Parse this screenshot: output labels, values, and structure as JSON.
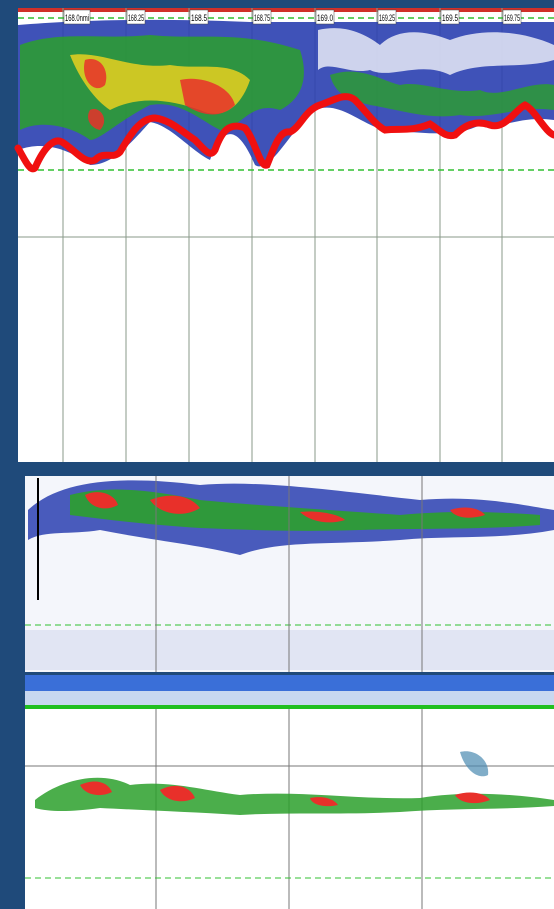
{
  "top_panel": {
    "distance_labels": [
      "168.0nmi",
      "168.25",
      "168.5",
      "168.75",
      "169.0",
      "169.25",
      "169.5",
      "169.75"
    ]
  }
}
